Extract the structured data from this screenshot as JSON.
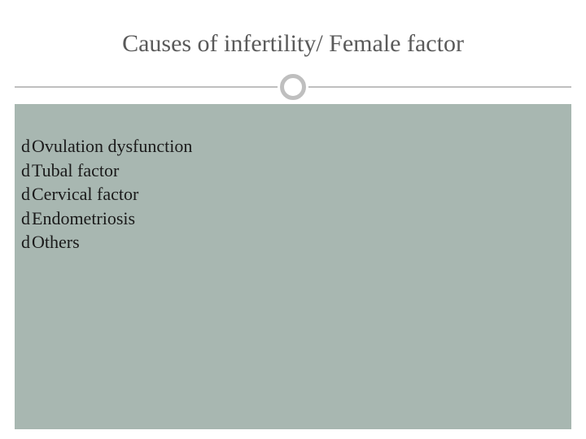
{
  "slide": {
    "title": "Causes of infertility/ Female factor",
    "title_color": "#5a5a5a",
    "title_fontsize": 30,
    "background_color": "#ffffff",
    "content_background": "#a8b7b1",
    "divider_color": "#bfbfbf",
    "circle_ring_color": "#bfbfbf",
    "bullet_glyph": "d",
    "bullet_text_color": "#1a1a1a",
    "bullet_fontsize": 22,
    "bullets": [
      {
        "text": "Ovulation dysfunction"
      },
      {
        "text": "Tubal factor"
      },
      {
        "text": "Cervical factor"
      },
      {
        "text": "Endometriosis"
      },
      {
        "text": "Others"
      }
    ]
  }
}
